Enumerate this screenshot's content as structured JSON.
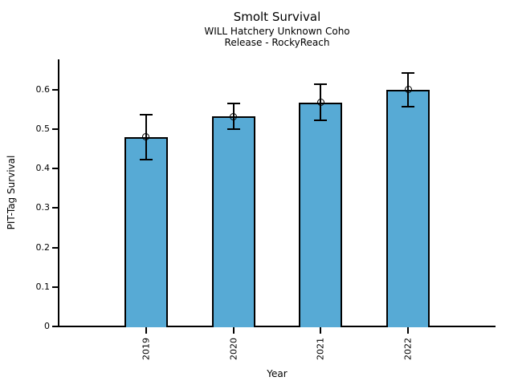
{
  "chart_data": {
    "type": "bar",
    "title": "Smolt Survival",
    "subtitle1": "WILL Hatchery Unknown Coho",
    "subtitle2": "Release - RockyReach",
    "xlabel": "Year",
    "ylabel": "PIT-Tag Survival",
    "categories": [
      "2019",
      "2020",
      "2021",
      "2022"
    ],
    "values": [
      0.48,
      0.532,
      0.568,
      0.6
    ],
    "error_low": [
      0.423,
      0.5,
      0.522,
      0.557
    ],
    "error_high": [
      0.537,
      0.565,
      0.614,
      0.643
    ],
    "yticks": [
      0,
      0.1,
      0.2,
      0.3,
      0.4,
      0.5,
      0.6
    ],
    "ytick_labels": [
      "0",
      "0.1",
      "0.2",
      "0.3",
      "0.4",
      "0.5",
      "0.6"
    ],
    "ylim": [
      0,
      0.677
    ],
    "bar_color": "#57AAD5",
    "bar_edge_color": "#000000",
    "error_color": "#000000",
    "background_color": "#ffffff",
    "grid": false,
    "legend": null
  }
}
